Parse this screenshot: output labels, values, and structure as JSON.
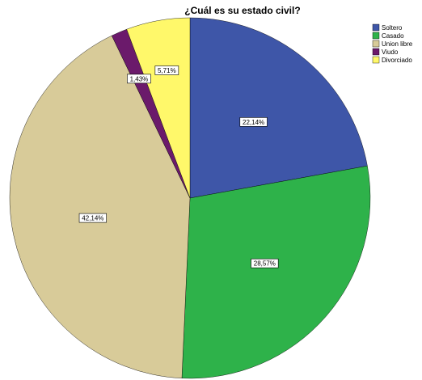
{
  "chart_data": {
    "type": "pie",
    "title": "¿Cuál es su estado civil?",
    "start_angle_deg": 0,
    "direction": "clockwise",
    "legend_position": "top-right",
    "slices": [
      {
        "name": "Soltero",
        "value": 22.14,
        "label": "22,14%",
        "color": "#3E56A8"
      },
      {
        "name": "Casado",
        "value": 28.57,
        "label": "28,57%",
        "color": "#2EB24A"
      },
      {
        "name": "Union libre",
        "value": 42.14,
        "label": "42,14%",
        "color": "#D8CB99"
      },
      {
        "name": "Viudo",
        "value": 1.43,
        "label": "1,43%",
        "color": "#6B1A6B"
      },
      {
        "name": "Divorciado",
        "value": 5.71,
        "label": "5,71%",
        "color": "#FFF86A"
      }
    ]
  }
}
